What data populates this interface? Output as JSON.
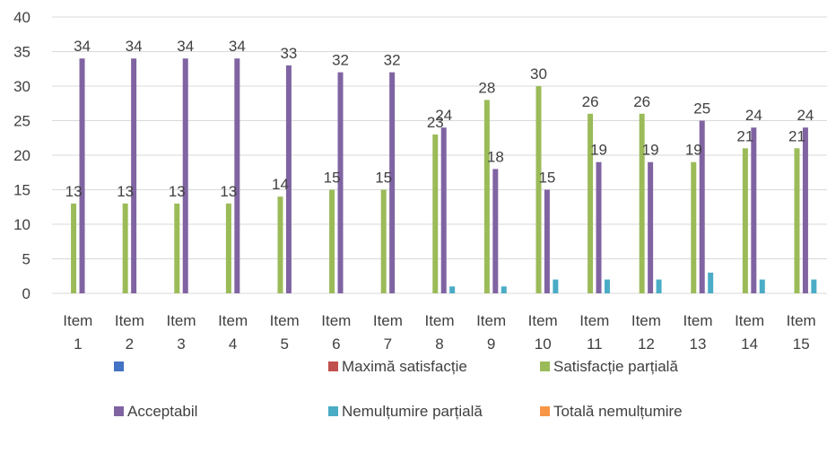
{
  "chart_data": {
    "type": "bar",
    "title": "",
    "xlabel": "",
    "ylabel": "",
    "ylim": [
      0,
      40
    ],
    "y_ticks": [
      0,
      5,
      10,
      15,
      20,
      25,
      30,
      35,
      40
    ],
    "grid": "horizontal",
    "legend_position": "bottom",
    "categories": [
      [
        "Item",
        "1"
      ],
      [
        "Item",
        "2"
      ],
      [
        "Item",
        "3"
      ],
      [
        "Item",
        "4"
      ],
      [
        "Item",
        "5"
      ],
      [
        "Item",
        "6"
      ],
      [
        "Item",
        "7"
      ],
      [
        "Item",
        "8"
      ],
      [
        "Item",
        "9"
      ],
      [
        "Item",
        "10"
      ],
      [
        "Item",
        "11"
      ],
      [
        "Item",
        "12"
      ],
      [
        "Item",
        "13"
      ],
      [
        "Item",
        "14"
      ],
      [
        "Item",
        "15"
      ]
    ],
    "series": [
      {
        "name": "",
        "color": "#4472C4",
        "values": [
          0,
          0,
          0,
          0,
          0,
          0,
          0,
          0,
          0,
          0,
          0,
          0,
          0,
          0,
          0
        ],
        "labels": false
      },
      {
        "name": "Maximă satisfacție",
        "color": "#C0504D",
        "values": [
          0,
          0,
          0,
          0,
          0,
          0,
          0,
          0,
          0,
          0,
          0,
          0,
          0,
          0,
          0
        ],
        "labels": false
      },
      {
        "name": "Satisfacție parțială",
        "color": "#9BBB59",
        "values": [
          13,
          13,
          13,
          13,
          14,
          15,
          15,
          23,
          28,
          30,
          26,
          26,
          19,
          21,
          21
        ],
        "labels": true
      },
      {
        "name": "Acceptabil",
        "color": "#8064A2",
        "values": [
          34,
          34,
          34,
          34,
          33,
          32,
          32,
          24,
          18,
          15,
          19,
          19,
          25,
          24,
          24
        ],
        "labels": true
      },
      {
        "name": "Nemulțumire parțială",
        "color": "#4BACC6",
        "values": [
          0,
          0,
          0,
          0,
          0,
          0,
          0,
          1,
          1,
          2,
          2,
          2,
          3,
          2,
          2
        ],
        "labels": false
      },
      {
        "name": "Totală nemulțumire",
        "color": "#F79646",
        "values": [
          0,
          0,
          0,
          0,
          0,
          0,
          0,
          0,
          0,
          0,
          0,
          0,
          0,
          0,
          0
        ],
        "labels": false
      }
    ]
  }
}
